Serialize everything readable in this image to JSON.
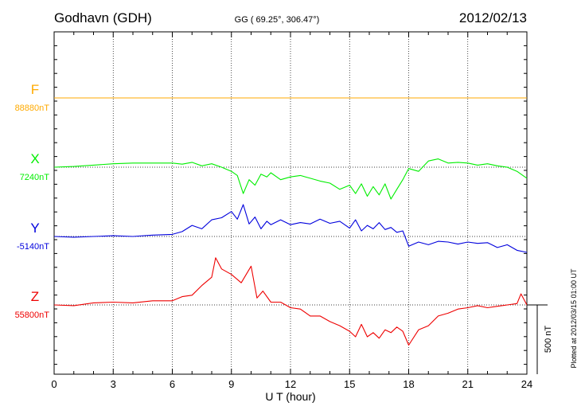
{
  "header": {
    "station": "Godhavn (GDH)",
    "coords": "GG ( 69.25°, 306.47°)",
    "date": "2012/02/13"
  },
  "footer": {
    "plotted": "Plotted at 2012/03/15 01:00 UT"
  },
  "colors": {
    "F": "#ffaa00",
    "X": "#00ee00",
    "Y": "#0000dd",
    "Z": "#ee0000",
    "axis": "#000000"
  },
  "chart_data": {
    "type": "line",
    "xlabel": "U T (hour)",
    "xlim": [
      0,
      24
    ],
    "xticks": [
      0,
      3,
      6,
      9,
      12,
      15,
      18,
      21,
      24
    ],
    "xtick_labels": [
      "0",
      "3",
      "6",
      "9",
      "12",
      "15",
      "18",
      "21",
      "24"
    ],
    "grid": true,
    "scale_bar": {
      "label": "500 nT",
      "value_nT": 500
    },
    "series": [
      {
        "name": "F",
        "baseline_label": "88880nT",
        "baseline_nT": 88880,
        "x": [
          0,
          24
        ],
        "y": [
          88880,
          88880
        ]
      },
      {
        "name": "X",
        "baseline_label": "7240nT",
        "baseline_nT": 7240,
        "x": [
          0,
          1,
          2,
          3,
          4,
          5,
          6,
          6.5,
          7,
          7.5,
          8,
          8.5,
          9,
          9.3,
          9.6,
          9.9,
          10.2,
          10.5,
          10.8,
          11,
          11.5,
          12,
          12.5,
          13,
          13.5,
          14,
          14.5,
          15,
          15.3,
          15.6,
          15.9,
          16.2,
          16.5,
          16.8,
          17.1,
          17.4,
          17.7,
          18,
          18.5,
          19,
          19.5,
          20,
          20.5,
          21,
          21.5,
          22,
          22.5,
          23,
          23.5,
          24
        ],
        "y": [
          7240,
          7245,
          7255,
          7265,
          7270,
          7270,
          7270,
          7262,
          7275,
          7250,
          7265,
          7240,
          7210,
          7180,
          7050,
          7150,
          7110,
          7190,
          7170,
          7200,
          7150,
          7170,
          7180,
          7160,
          7140,
          7125,
          7080,
          7110,
          7050,
          7120,
          7030,
          7100,
          7040,
          7120,
          7010,
          7080,
          7150,
          7230,
          7210,
          7285,
          7300,
          7270,
          7275,
          7270,
          7255,
          7265,
          7250,
          7240,
          7210,
          7160
        ]
      },
      {
        "name": "Y",
        "baseline_label": "-5140nT",
        "baseline_nT": -5140,
        "x": [
          0,
          1,
          2,
          3,
          4,
          5,
          6,
          6.5,
          7,
          7.5,
          8,
          8.5,
          9,
          9.3,
          9.6,
          9.9,
          10.2,
          10.5,
          10.8,
          11,
          11.5,
          12,
          12.5,
          13,
          13.5,
          14,
          14.5,
          15,
          15.3,
          15.6,
          15.9,
          16.2,
          16.5,
          16.8,
          17.1,
          17.4,
          17.7,
          18,
          18.5,
          19,
          19.5,
          20,
          20.5,
          21,
          21.5,
          22,
          22.5,
          23,
          23.5,
          24
        ],
        "y": [
          -5140,
          -5145,
          -5140,
          -5135,
          -5140,
          -5130,
          -5125,
          -5105,
          -5060,
          -5085,
          -5020,
          -5005,
          -4960,
          -5015,
          -4910,
          -5050,
          -5000,
          -5085,
          -5030,
          -5055,
          -5020,
          -5055,
          -5040,
          -5050,
          -5015,
          -5045,
          -5030,
          -5080,
          -5020,
          -5100,
          -5060,
          -5085,
          -5040,
          -5090,
          -5075,
          -5110,
          -5100,
          -5210,
          -5180,
          -5200,
          -5175,
          -5180,
          -5195,
          -5180,
          -5190,
          -5185,
          -5220,
          -5200,
          -5240,
          -5255
        ]
      },
      {
        "name": "Z",
        "baseline_label": "55800nT",
        "baseline_nT": 55800,
        "x": [
          0,
          1,
          2,
          3,
          4,
          5,
          6,
          6.5,
          7,
          7.5,
          8,
          8.2,
          8.5,
          9,
          9.5,
          10,
          10.3,
          10.6,
          11,
          11.5,
          12,
          12.5,
          13,
          13.5,
          14,
          14.5,
          15,
          15.3,
          15.6,
          15.9,
          16.2,
          16.5,
          16.8,
          17.1,
          17.4,
          17.7,
          18,
          18.5,
          19,
          19.5,
          20,
          20.5,
          21,
          21.5,
          22,
          22.5,
          23,
          23.5,
          23.7,
          24
        ],
        "y": [
          55800,
          55795,
          55815,
          55820,
          55815,
          55830,
          55830,
          55860,
          55870,
          55940,
          56000,
          56140,
          56060,
          56020,
          55960,
          56080,
          55850,
          55900,
          55820,
          55820,
          55780,
          55770,
          55720,
          55720,
          55680,
          55650,
          55610,
          55570,
          55660,
          55570,
          55600,
          55560,
          55620,
          55600,
          55640,
          55610,
          55510,
          55620,
          55650,
          55720,
          55740,
          55770,
          55780,
          55795,
          55780,
          55790,
          55800,
          55810,
          55880,
          55800
        ]
      }
    ]
  }
}
